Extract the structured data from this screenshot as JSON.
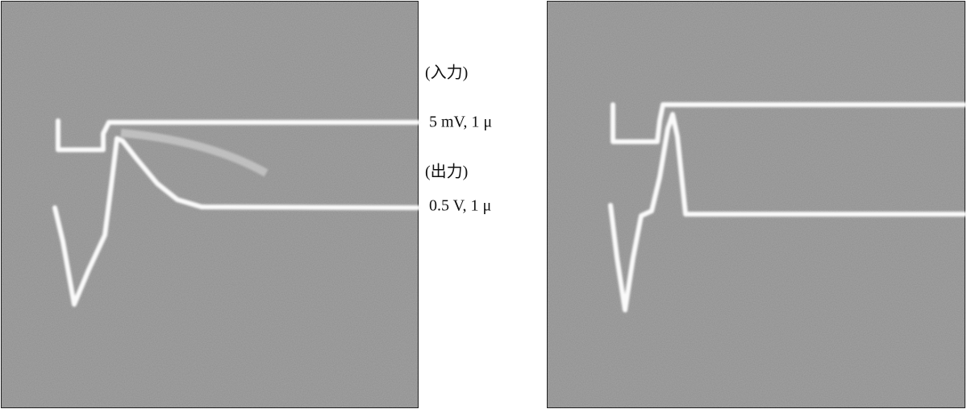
{
  "labels": {
    "input_title": "(入力)",
    "input_scale": "5 mV, 1 μ",
    "output_title": "(出力)",
    "output_scale": "0.5 V, 1 μ"
  }
}
